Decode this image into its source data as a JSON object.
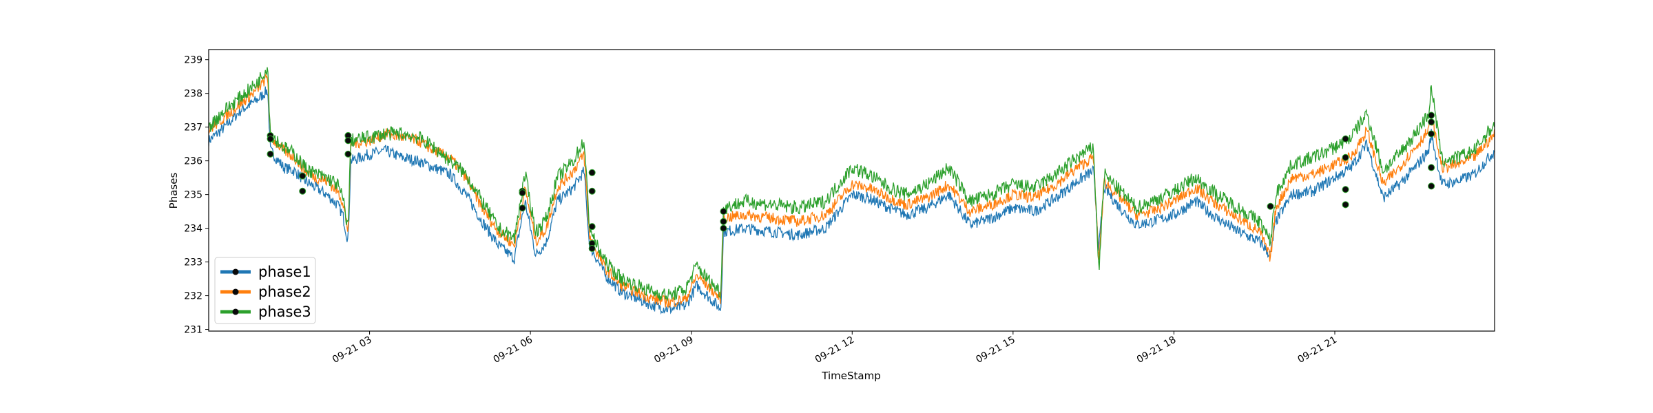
{
  "chart_data": {
    "type": "line",
    "title": "",
    "xlabel": "TimeStamp",
    "ylabel": "Phases",
    "x_range": [
      "2020-09-21T00:00",
      "2020-09-21T23:59"
    ],
    "ylim": [
      230.95,
      239.3
    ],
    "x_tick_labels": [
      "09-21 03",
      "09-21 06",
      "09-21 09",
      "09-21 12",
      "09-21 15",
      "09-21 18",
      "09-21 21"
    ],
    "x_tick_values_hours": [
      3,
      6,
      9,
      12,
      15,
      18,
      21
    ],
    "y_ticks": [
      231,
      232,
      233,
      234,
      235,
      236,
      237,
      238,
      239
    ],
    "grid": false,
    "legend_position": "lower-left",
    "series": [
      {
        "name": "phase1",
        "color": "#1f77b4",
        "x_hours": [
          0,
          0.3,
          0.6,
          0.9,
          1.1,
          1.15,
          1.4,
          1.6,
          1.8,
          2.0,
          2.2,
          2.4,
          2.5,
          2.6,
          2.65,
          3.0,
          3.3,
          3.6,
          3.9,
          4.2,
          4.5,
          4.8,
          5.1,
          5.4,
          5.7,
          5.9,
          6.1,
          6.3,
          6.5,
          6.8,
          7.0,
          7.1,
          7.2,
          7.4,
          7.7,
          8.0,
          8.3,
          8.6,
          8.9,
          9.1,
          9.3,
          9.55,
          9.6,
          10.0,
          10.5,
          11.0,
          11.5,
          12.0,
          12.3,
          12.7,
          13.0,
          13.4,
          13.8,
          14.2,
          14.6,
          15.0,
          15.4,
          15.8,
          16.2,
          16.5,
          16.6,
          16.7,
          17.0,
          17.3,
          17.6,
          18.0,
          18.4,
          18.8,
          19.2,
          19.6,
          19.8,
          19.9,
          20.2,
          20.6,
          21.0,
          21.3,
          21.6,
          21.9,
          22.2,
          22.5,
          22.75,
          22.8,
          23.0,
          23.3,
          23.6,
          23.98
        ],
        "values": [
          236.6,
          237.0,
          237.5,
          237.8,
          238.1,
          236.3,
          235.8,
          235.7,
          235.4,
          235.2,
          235.0,
          234.7,
          234.4,
          233.6,
          236.0,
          236.2,
          236.3,
          236.1,
          236.0,
          235.8,
          235.6,
          235.0,
          234.2,
          233.5,
          233.1,
          234.8,
          233.2,
          233.6,
          234.8,
          235.2,
          235.7,
          233.5,
          233.2,
          232.6,
          232.1,
          231.9,
          231.7,
          231.6,
          231.7,
          232.3,
          232.0,
          231.6,
          233.9,
          234.0,
          233.9,
          233.8,
          234.0,
          235.0,
          234.9,
          234.6,
          234.4,
          234.6,
          235.0,
          234.1,
          234.3,
          234.6,
          234.5,
          234.9,
          235.4,
          235.7,
          233.4,
          235.2,
          234.6,
          234.1,
          234.2,
          234.4,
          234.8,
          234.3,
          233.9,
          233.6,
          233.2,
          234.2,
          235.0,
          235.1,
          235.5,
          235.8,
          236.5,
          234.9,
          235.3,
          235.8,
          236.3,
          236.8,
          235.3,
          235.4,
          235.6,
          236.3
        ]
      },
      {
        "name": "phase2",
        "color": "#ff7f0e",
        "x_hours": [
          0,
          0.3,
          0.6,
          0.9,
          1.1,
          1.15,
          1.4,
          1.6,
          1.8,
          2.0,
          2.2,
          2.4,
          2.5,
          2.6,
          2.65,
          3.0,
          3.3,
          3.6,
          3.9,
          4.2,
          4.5,
          4.8,
          5.1,
          5.4,
          5.7,
          5.9,
          6.1,
          6.3,
          6.5,
          6.8,
          7.0,
          7.1,
          7.2,
          7.4,
          7.7,
          8.0,
          8.3,
          8.6,
          8.9,
          9.1,
          9.3,
          9.55,
          9.6,
          10.0,
          10.5,
          11.0,
          11.5,
          12.0,
          12.3,
          12.7,
          13.0,
          13.4,
          13.8,
          14.2,
          14.6,
          15.0,
          15.4,
          15.8,
          16.2,
          16.5,
          16.6,
          16.7,
          17.0,
          17.3,
          17.6,
          18.0,
          18.4,
          18.8,
          19.2,
          19.6,
          19.8,
          19.9,
          20.2,
          20.6,
          21.0,
          21.3,
          21.6,
          21.9,
          22.2,
          22.5,
          22.75,
          22.8,
          23.0,
          23.3,
          23.6,
          23.98
        ],
        "values": [
          236.9,
          237.3,
          237.7,
          238.1,
          238.5,
          236.7,
          236.3,
          236.1,
          235.7,
          235.5,
          235.4,
          235.1,
          234.8,
          233.9,
          236.5,
          236.6,
          236.8,
          236.7,
          236.6,
          236.3,
          236.1,
          235.5,
          234.6,
          233.9,
          233.5,
          235.2,
          233.6,
          234.0,
          235.2,
          235.7,
          236.2,
          233.8,
          233.4,
          232.8,
          232.3,
          232.1,
          231.9,
          231.8,
          231.9,
          232.6,
          232.3,
          231.9,
          234.3,
          234.4,
          234.3,
          234.2,
          234.4,
          235.3,
          235.2,
          234.9,
          234.7,
          234.9,
          235.3,
          234.5,
          234.7,
          235.0,
          234.9,
          235.3,
          235.8,
          236.1,
          233.0,
          235.4,
          234.9,
          234.4,
          234.5,
          234.8,
          235.2,
          234.7,
          234.3,
          233.9,
          233.1,
          234.6,
          235.5,
          235.6,
          235.9,
          236.1,
          236.9,
          235.3,
          235.8,
          236.4,
          236.9,
          237.3,
          235.8,
          235.9,
          236.1,
          236.8
        ]
      },
      {
        "name": "phase3",
        "color": "#2ca02c",
        "x_hours": [
          0,
          0.3,
          0.6,
          0.9,
          1.1,
          1.15,
          1.4,
          1.6,
          1.8,
          2.0,
          2.2,
          2.4,
          2.5,
          2.6,
          2.65,
          3.0,
          3.3,
          3.6,
          3.9,
          4.2,
          4.5,
          4.8,
          5.1,
          5.4,
          5.7,
          5.9,
          6.1,
          6.3,
          6.5,
          6.8,
          7.0,
          7.1,
          7.2,
          7.4,
          7.7,
          8.0,
          8.3,
          8.6,
          8.9,
          9.1,
          9.3,
          9.55,
          9.6,
          10.0,
          10.5,
          11.0,
          11.5,
          12.0,
          12.3,
          12.7,
          13.0,
          13.4,
          13.8,
          14.2,
          14.6,
          15.0,
          15.4,
          15.8,
          16.2,
          16.5,
          16.6,
          16.7,
          17.0,
          17.3,
          17.6,
          18.0,
          18.4,
          18.8,
          19.2,
          19.6,
          19.8,
          19.9,
          20.2,
          20.6,
          21.0,
          21.3,
          21.6,
          21.9,
          22.2,
          22.5,
          22.75,
          22.8,
          23.0,
          23.3,
          23.6,
          23.98
        ],
        "values": [
          237.0,
          237.5,
          237.9,
          238.3,
          238.8,
          236.8,
          236.4,
          236.2,
          235.8,
          235.6,
          235.5,
          235.3,
          234.9,
          234.0,
          236.6,
          236.7,
          236.8,
          236.8,
          236.7,
          236.4,
          236.0,
          235.6,
          234.8,
          234.0,
          233.7,
          235.6,
          233.9,
          234.3,
          235.5,
          236.0,
          236.6,
          234.1,
          233.6,
          233.0,
          232.5,
          232.3,
          232.1,
          232.0,
          232.2,
          232.9,
          232.5,
          232.1,
          234.6,
          234.8,
          234.7,
          234.6,
          234.8,
          235.8,
          235.6,
          235.2,
          235.0,
          235.3,
          235.8,
          234.8,
          235.0,
          235.3,
          235.2,
          235.6,
          236.1,
          236.4,
          232.7,
          235.6,
          235.1,
          234.6,
          234.8,
          235.1,
          235.5,
          235.0,
          234.6,
          234.2,
          233.6,
          235.0,
          235.9,
          236.1,
          236.4,
          236.7,
          237.4,
          235.7,
          236.2,
          236.8,
          237.4,
          238.2,
          236.0,
          236.1,
          236.3,
          237.1
        ]
      }
    ],
    "markers": {
      "x_hours": [
        1.15,
        1.15,
        1.15,
        1.75,
        1.75,
        2.6,
        2.6,
        2.6,
        5.85,
        5.85,
        5.85,
        7.15,
        7.15,
        7.15,
        7.15,
        7.15,
        9.6,
        9.6,
        9.6,
        19.8,
        21.2,
        21.2,
        21.2,
        21.2,
        22.8,
        22.8,
        22.8,
        22.8,
        22.8
      ],
      "values": [
        236.75,
        236.65,
        236.2,
        235.1,
        235.55,
        236.75,
        236.6,
        236.2,
        235.1,
        234.6,
        235.05,
        235.65,
        235.1,
        234.05,
        233.55,
        233.4,
        234.5,
        234.2,
        234.0,
        234.65,
        236.65,
        236.1,
        235.15,
        234.7,
        237.35,
        237.15,
        236.8,
        235.8,
        235.25
      ]
    }
  }
}
